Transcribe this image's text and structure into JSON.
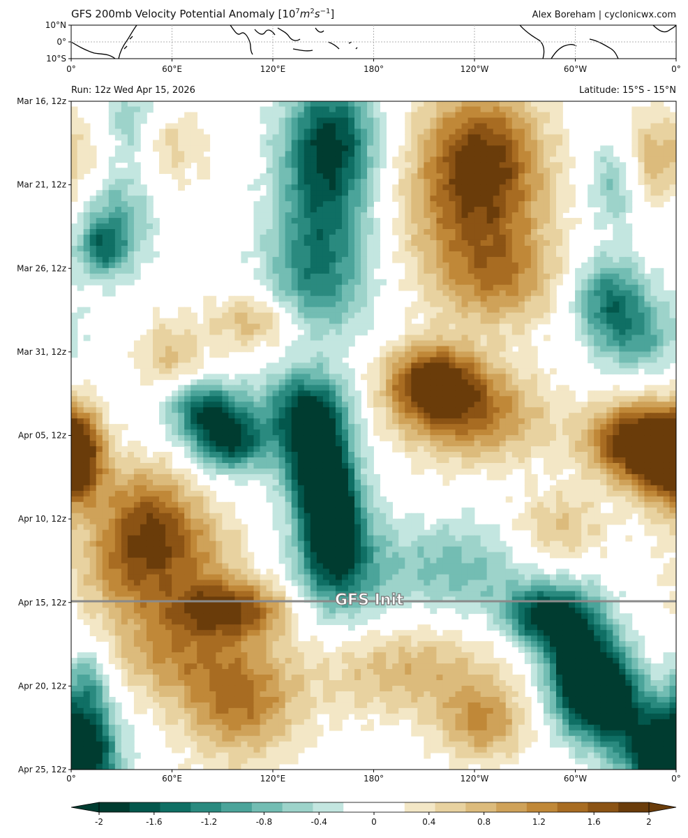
{
  "header": {
    "title_main": "GFS 200mb Velocity Potential Anomaly [10",
    "title_exp1": "7",
    "title_units": "m",
    "title_exp2": "2",
    "title_units2": "s",
    "title_exp3": "−1",
    "title_close": "]",
    "credit": "Alex Boreham | cyclonicwx.com"
  },
  "map": {
    "lat_labels": [
      "10°N",
      "0°",
      "10°S"
    ],
    "lon_labels": [
      "0°",
      "60°E",
      "120°E",
      "180°",
      "120°W",
      "60°W",
      "0°"
    ]
  },
  "hovmoller": {
    "run_label": "Run: 12z Wed Apr 15, 2026",
    "lat_range_label": "Latitude: 15°S - 15°N",
    "init_label": "GFS Init"
  },
  "chart_data": {
    "type": "heatmap",
    "title": "GFS 200mb Velocity Potential Anomaly [10^7 m^2 s^-1]",
    "x_axis": "longitude",
    "x_ticks": [
      "0°",
      "60°E",
      "120°E",
      "180°",
      "120°W",
      "60°W",
      "0°"
    ],
    "y_axis": "time",
    "y_ticks": [
      "Mar 16, 12z",
      "Mar 21, 12z",
      "Mar 26, 12z",
      "Mar 31, 12z",
      "Apr 05, 12z",
      "Apr 10, 12z",
      "Apr 15, 12z",
      "Apr 20, 12z",
      "Apr 25, 12z"
    ],
    "init_time": "Apr 15, 12z",
    "colorbar": {
      "ticks": [
        "-2",
        "-1.6",
        "-1.2",
        "-0.8",
        "-0.4",
        "0",
        "0.4",
        "0.8",
        "1.2",
        "1.6",
        "2"
      ],
      "range": [
        -2,
        2
      ],
      "colors": [
        "#003c30",
        "#03574c",
        "#0f6f64",
        "#2a8a7f",
        "#4ba49a",
        "#73bdb3",
        "#9dd3ca",
        "#c3e6e0",
        "#ffffff",
        "#ffffff",
        "#f3e7c6",
        "#e8d2a0",
        "#dcbb7c",
        "#cfa259",
        "#c08838",
        "#a86c22",
        "#8b5314",
        "#6a3c0a"
      ]
    },
    "features": [
      {
        "sign": "negative",
        "lon_center": 150,
        "time": "Mar 16 – Mar 28",
        "intensity": -1.5
      },
      {
        "sign": "negative",
        "lon_center": 110,
        "time": "Apr 01 – Apr 07",
        "intensity": -1.8
      },
      {
        "sign": "negative",
        "lon_center": 150,
        "time": "Apr 05 – Apr 12",
        "intensity": -2.0
      },
      {
        "sign": "positive",
        "lon_center": -120,
        "time": "Mar 16 – Mar 28",
        "intensity": 1.4
      },
      {
        "sign": "positive",
        "lon_center": -150,
        "time": "Apr 01 – Apr 04",
        "intensity": 1.8
      },
      {
        "sign": "positive",
        "lon_center": -25,
        "time": "Apr 04 – Apr 07",
        "intensity": 2.0
      },
      {
        "sign": "positive",
        "lon_center": 90,
        "time": "Apr 15 – Apr 17",
        "intensity": 1.6
      },
      {
        "sign": "negative",
        "lon_center": -50,
        "time": "Apr 18 – Apr 23",
        "intensity": -2.0
      },
      {
        "sign": "negative",
        "lon_center": 0,
        "time": "Apr 24 – Apr 25",
        "intensity": -2.0
      },
      {
        "sign": "positive",
        "lon_center": 90,
        "time": "Apr 21 – Apr 25",
        "intensity": 1.3
      }
    ]
  }
}
